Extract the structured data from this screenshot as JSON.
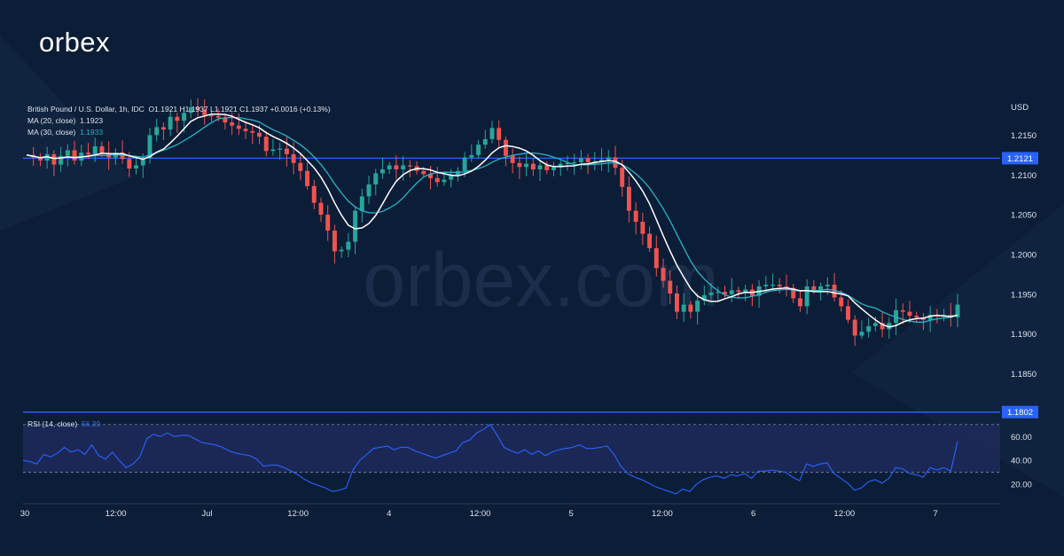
{
  "brand": {
    "logo": "orbex",
    "watermark": "orbex.com"
  },
  "header": {
    "symbol": "British Pound / U.S. Dollar, 1h, IDC",
    "ohlc": "O1.1921  H1.1937  L1.1921  C1.1937  +0.0016 (+0.13%)",
    "ma20_label": "MA (20, close)",
    "ma20_value": "1.1923",
    "ma30_label": "MA (30, close)",
    "ma30_value": "1.1933"
  },
  "rsi": {
    "label": "RSI (14, close)",
    "value": "56.39"
  },
  "colors": {
    "background": "#0c1d37",
    "up": "#26a69a",
    "down": "#ef5350",
    "ma20": "#ffffff",
    "ma30": "#26b5c5",
    "level_line": "#2962ff",
    "rsi_line": "#2962ff"
  },
  "chart_data": {
    "type": "candlestick",
    "currency": "USD",
    "price_axis": {
      "ticks": [
        "1.2150",
        "1.2100",
        "1.2050",
        "1.2000",
        "1.1950",
        "1.1900",
        "1.1850"
      ],
      "range": [
        1.1805,
        1.2195
      ]
    },
    "time_axis": {
      "ticks": [
        "30",
        "12:00",
        "Jul",
        "12:00",
        "4",
        "12:00",
        "5",
        "12:00",
        "6",
        "12:00",
        "7"
      ]
    },
    "levels": [
      {
        "price": 1.2121,
        "label": "1.2121"
      },
      {
        "price": 1.1802,
        "label": "1.1802"
      }
    ],
    "closes": [
      1.2125,
      1.2122,
      1.2118,
      1.2126,
      1.2113,
      1.2124,
      1.2131,
      1.2118,
      1.2128,
      1.2126,
      1.2136,
      1.2127,
      1.2122,
      1.2128,
      1.212,
      1.2108,
      1.2112,
      1.2121,
      1.215,
      1.216,
      1.2157,
      1.2173,
      1.2168,
      1.2178,
      1.2185,
      1.2182,
      1.2175,
      1.2174,
      1.2172,
      1.2166,
      1.2162,
      1.2158,
      1.2155,
      1.2153,
      1.2148,
      1.213,
      1.2132,
      1.2133,
      1.2126,
      1.2115,
      1.2105,
      1.2086,
      1.2065,
      1.205,
      1.203,
      1.2004,
      1.2006,
      1.2016,
      1.2055,
      1.2073,
      1.2088,
      1.2102,
      1.2107,
      1.2112,
      1.2107,
      1.2112,
      1.2111,
      1.2105,
      1.2101,
      1.2096,
      1.2091,
      1.2094,
      1.21,
      1.2105,
      1.2122,
      1.2125,
      1.2138,
      1.2145,
      1.2159,
      1.2144,
      1.2124,
      1.2115,
      1.211,
      1.2114,
      1.2107,
      1.2112,
      1.2106,
      1.211,
      1.2114,
      1.2115,
      1.2116,
      1.2121,
      1.2116,
      1.2117,
      1.2119,
      1.2122,
      1.2109,
      1.2085,
      1.2055,
      1.2041,
      1.2026,
      1.2008,
      1.1983,
      1.1967,
      1.1951,
      1.1928,
      1.1937,
      1.1928,
      1.1942,
      1.1949,
      1.1952,
      1.1953,
      1.195,
      1.1955,
      1.1953,
      1.1956,
      1.1948,
      1.196,
      1.1962,
      1.1962,
      1.196,
      1.1958,
      1.1945,
      1.1935,
      1.196,
      1.1955,
      1.196,
      1.1962,
      1.1946,
      1.1935,
      1.1918,
      1.1898,
      1.1903,
      1.191,
      1.1914,
      1.1906,
      1.1914,
      1.193,
      1.1928,
      1.1923,
      1.1921,
      1.1918,
      1.1924,
      1.1922,
      1.1924,
      1.1921,
      1.1937
    ],
    "ma20_last": 1.1923,
    "ma30_last": 1.1933,
    "rsi_axis": {
      "ticks": [
        "60.00",
        "40.00",
        "20.00"
      ],
      "range": [
        6,
        78
      ],
      "band": [
        30,
        70
      ]
    },
    "rsi_values": [
      40,
      39,
      37,
      45,
      43,
      46,
      51,
      47,
      49,
      45,
      53,
      44,
      41,
      47,
      40,
      34,
      37,
      43,
      58,
      62,
      60,
      63,
      60,
      61,
      61,
      58,
      55,
      54,
      53,
      51,
      48,
      46,
      45,
      44,
      41,
      35,
      36,
      36,
      34,
      31,
      28,
      24,
      21,
      19,
      17,
      14,
      15,
      17,
      32,
      40,
      45,
      50,
      51,
      52,
      49,
      51,
      51,
      48,
      46,
      44,
      42,
      44,
      46,
      48,
      55,
      57,
      63,
      66,
      70,
      61,
      51,
      48,
      46,
      49,
      45,
      48,
      44,
      47,
      49,
      50,
      51,
      53,
      50,
      50,
      51,
      52,
      45,
      35,
      29,
      26,
      24,
      21,
      18,
      16,
      14,
      12,
      16,
      14,
      20,
      24,
      26,
      27,
      25,
      28,
      27,
      29,
      25,
      31,
      31,
      32,
      31,
      30,
      26,
      23,
      37,
      35,
      37,
      38,
      29,
      25,
      21,
      15,
      17,
      22,
      24,
      21,
      25,
      34,
      33,
      29,
      28,
      26,
      34,
      32,
      34,
      31,
      56
    ]
  }
}
